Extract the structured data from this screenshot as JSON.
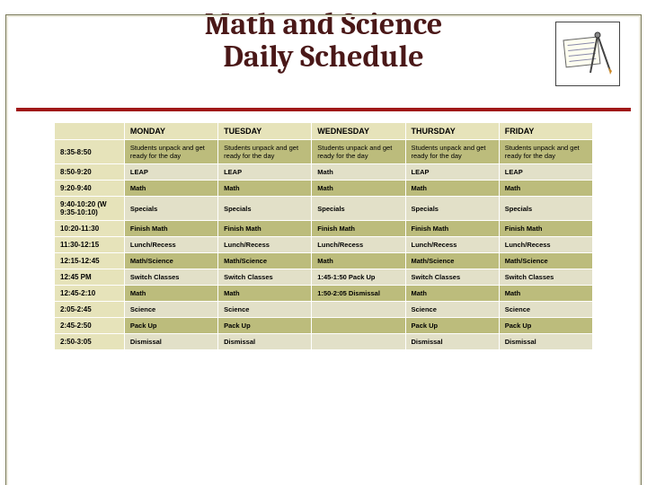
{
  "title_line1": "Math and Science",
  "title_line2": "Daily Schedule",
  "title_color": "#4a1818",
  "title_fontsize": 34,
  "columns": [
    "MONDAY",
    "TUESDAY",
    "WEDNESDAY",
    "THURSDAY",
    "FRIDAY"
  ],
  "header_bg": "#e6e3ba",
  "header_fontsize": 9,
  "timecol_bg": "#e6e3ba",
  "timecol_fontsize": 8,
  "row_bg_a": "#bcbc7c",
  "row_bg_b": "#e2e0c8",
  "cell_fontsize": 7.5,
  "text_color": "#000000",
  "table_alt_start": "a",
  "rows": [
    {
      "time": "8:35-8:50",
      "cells": [
        "Students unpack and get ready for the day",
        "Students unpack and get ready for the day",
        "Students unpack and get ready for the day",
        "Students unpack and get ready for the day",
        "Students unpack and get ready for the day"
      ],
      "weight": "normal"
    },
    {
      "time": "8:50-9:20",
      "cells": [
        "LEAP",
        "LEAP",
        "Math",
        "LEAP",
        "LEAP"
      ]
    },
    {
      "time": "9:20-9:40",
      "cells": [
        "Math",
        "Math",
        "Math",
        "Math",
        "Math"
      ]
    },
    {
      "time": "9:40-10:20 (W 9:35-10:10)",
      "cells": [
        "Specials",
        "Specials",
        "Specials",
        "Specials",
        "Specials"
      ]
    },
    {
      "time": "10:20-11:30",
      "cells": [
        "Finish Math",
        "Finish Math",
        "Finish Math",
        "Finish Math",
        "Finish Math"
      ]
    },
    {
      "time": "11:30-12:15",
      "cells": [
        "Lunch/Recess",
        "Lunch/Recess",
        "Lunch/Recess",
        "Lunch/Recess",
        "Lunch/Recess"
      ]
    },
    {
      "time": "12:15-12:45",
      "cells": [
        "Math/Science",
        "Math/Science",
        "Math",
        "Math/Science",
        "Math/Science"
      ]
    },
    {
      "time": "12:45 PM",
      "cells": [
        "Switch Classes",
        "Switch Classes",
        "1:45-1:50 Pack Up",
        "Switch Classes",
        "Switch Classes"
      ]
    },
    {
      "time": "12:45-2:10",
      "cells": [
        "Math",
        "Math",
        "1:50-2:05 Dismissal",
        "Math",
        "Math"
      ]
    },
    {
      "time": "2:05-2:45",
      "cells": [
        "Science",
        "Science",
        "",
        "Science",
        "Science"
      ]
    },
    {
      "time": "2:45-2:50",
      "cells": [
        "Pack Up",
        "Pack Up",
        "",
        "Pack Up",
        "Pack Up"
      ]
    },
    {
      "time": "2:50-3:05",
      "cells": [
        "Dismissal",
        "Dismissal",
        "",
        "Dismissal",
        "Dismissal"
      ]
    }
  ]
}
